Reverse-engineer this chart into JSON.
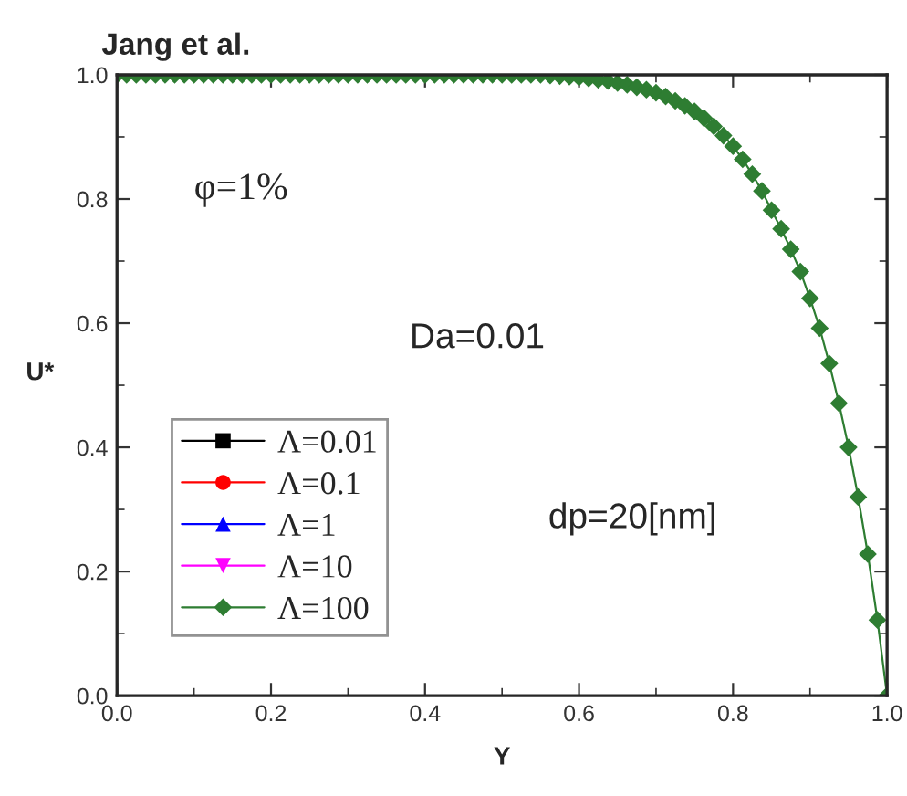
{
  "chart_data": {
    "type": "line",
    "title": "Jang et al.",
    "xlabel": "Y",
    "ylabel": "U*",
    "annotations": [
      "φ=1%",
      "Da=0.01",
      "dp=20[nm]"
    ],
    "x": [
      0.0,
      0.0125,
      0.025,
      0.0375,
      0.05,
      0.0625,
      0.075,
      0.0875,
      0.1,
      0.1125,
      0.125,
      0.1375,
      0.15,
      0.1625,
      0.175,
      0.1875,
      0.2,
      0.2125,
      0.225,
      0.2375,
      0.25,
      0.2625,
      0.275,
      0.2875,
      0.3,
      0.3125,
      0.325,
      0.3375,
      0.35,
      0.3625,
      0.375,
      0.3875,
      0.4,
      0.4125,
      0.425,
      0.4375,
      0.45,
      0.4625,
      0.475,
      0.4875,
      0.5,
      0.5125,
      0.525,
      0.5375,
      0.55,
      0.5625,
      0.575,
      0.5875,
      0.6,
      0.6125,
      0.625,
      0.6375,
      0.65,
      0.6625,
      0.675,
      0.6875,
      0.7,
      0.7125,
      0.725,
      0.7375,
      0.75,
      0.7625,
      0.775,
      0.7875,
      0.8,
      0.8125,
      0.825,
      0.8375,
      0.85,
      0.8625,
      0.875,
      0.8875,
      0.9,
      0.9125,
      0.925,
      0.9375,
      0.95,
      0.9625,
      0.975,
      0.9875,
      1.0
    ],
    "series": [
      {
        "name": "Λ=0.01",
        "color": "#000000",
        "marker": "square",
        "values": [
          null,
          null,
          null,
          null,
          null,
          null,
          null,
          null,
          null,
          null,
          null,
          null,
          null,
          null,
          null,
          null,
          null,
          null,
          null,
          null,
          null,
          null,
          null,
          null,
          null,
          null,
          null,
          null,
          null,
          null,
          null,
          null,
          null,
          null,
          null,
          null,
          null,
          null,
          null,
          null,
          null,
          null,
          null,
          null,
          null,
          null,
          null,
          null,
          null,
          null,
          null,
          null,
          null,
          null,
          null,
          null,
          null,
          null,
          null,
          null,
          null,
          null,
          null,
          null,
          null,
          null,
          null,
          null,
          null,
          null,
          null,
          null,
          null,
          null,
          null,
          null,
          null,
          null,
          null,
          null,
          null
        ]
      },
      {
        "name": "Λ=0.1",
        "color": "#ff0000",
        "marker": "circle",
        "values": [
          null,
          null,
          null,
          null,
          null,
          null,
          null,
          null,
          null,
          null,
          null,
          null,
          null,
          null,
          null,
          null,
          null,
          null,
          null,
          null,
          null,
          null,
          null,
          null,
          null,
          null,
          null,
          null,
          null,
          null,
          null,
          null,
          null,
          null,
          null,
          null,
          null,
          null,
          null,
          null,
          null,
          null,
          null,
          null,
          null,
          null,
          null,
          null,
          null,
          null,
          null,
          null,
          null,
          null,
          null,
          null,
          null,
          null,
          null,
          null,
          null,
          null,
          null,
          null,
          null,
          null,
          null,
          null,
          null,
          null,
          null,
          null,
          null,
          null,
          null,
          null,
          null,
          null,
          null,
          null,
          null
        ]
      },
      {
        "name": "Λ=1",
        "color": "#0000ff",
        "marker": "triangle",
        "values": [
          null,
          null,
          null,
          null,
          null,
          null,
          null,
          null,
          null,
          null,
          null,
          null,
          null,
          null,
          null,
          null,
          null,
          null,
          null,
          null,
          null,
          null,
          null,
          null,
          null,
          null,
          null,
          null,
          null,
          null,
          null,
          null,
          null,
          null,
          null,
          null,
          null,
          null,
          null,
          null,
          null,
          null,
          null,
          null,
          null,
          null,
          null,
          null,
          null,
          null,
          null,
          null,
          null,
          null,
          null,
          null,
          null,
          null,
          null,
          null,
          null,
          null,
          null,
          null,
          null,
          null,
          null,
          null,
          null,
          null,
          null,
          null,
          null,
          null,
          null,
          null,
          null,
          null,
          null,
          null,
          null
        ]
      },
      {
        "name": "Λ=10",
        "color": "#ff00ff",
        "marker": "triangle_down",
        "values": [
          null,
          null,
          null,
          null,
          null,
          null,
          null,
          null,
          null,
          null,
          null,
          null,
          null,
          null,
          null,
          null,
          null,
          null,
          null,
          null,
          null,
          null,
          null,
          null,
          null,
          null,
          null,
          null,
          null,
          null,
          null,
          null,
          null,
          null,
          null,
          null,
          null,
          null,
          null,
          null,
          null,
          null,
          null,
          null,
          null,
          null,
          null,
          null,
          null,
          null,
          null,
          null,
          null,
          null,
          null,
          null,
          null,
          null,
          null,
          null,
          null,
          null,
          null,
          null,
          null,
          null,
          null,
          null,
          null,
          null,
          null,
          null,
          null,
          null,
          null,
          null,
          null,
          null,
          null,
          null,
          null
        ]
      },
      {
        "name": "Λ=100",
        "color": "#2e7d32",
        "marker": "diamond",
        "values": [
          1.0,
          1.0,
          1.0,
          1.0,
          1.0,
          1.0,
          1.0,
          1.0,
          1.0,
          1.0,
          1.0,
          1.0,
          1.0,
          1.0,
          1.0,
          1.0,
          1.0,
          1.0,
          1.0,
          1.0,
          1.0,
          1.0,
          1.0,
          1.0,
          1.0,
          1.0,
          1.0,
          1.0,
          1.0,
          1.0,
          1.0,
          1.0,
          1.0,
          1.0,
          1.0,
          1.0,
          1.0,
          1.0,
          1.0,
          1.0,
          1.0,
          1.0,
          1.0,
          1.0,
          1.0,
          0.999,
          0.998,
          0.997,
          0.996,
          0.994,
          0.992,
          0.99,
          0.987,
          0.984,
          0.98,
          0.976,
          0.971,
          0.965,
          0.958,
          0.95,
          0.941,
          0.93,
          0.917,
          0.902,
          0.885,
          0.864,
          0.84,
          0.813,
          0.782,
          0.752,
          0.719,
          0.683,
          0.64,
          0.592,
          0.535,
          0.471,
          0.4,
          0.32,
          0.228,
          0.122,
          0.0
        ]
      }
    ],
    "xlim": [
      0.0,
      1.0
    ],
    "ylim": [
      0.0,
      1.0
    ],
    "xticks": [
      {
        "value": 0.0,
        "label": "0.0"
      },
      0.2,
      0.4,
      0.6,
      0.8,
      {
        "value": 1.0,
        "label": "1.0"
      }
    ],
    "yticks": [
      {
        "value": 0.0,
        "label": "0.0"
      },
      0.2,
      0.4,
      0.6,
      0.8,
      {
        "value": 1.0,
        "label": "1.0"
      }
    ],
    "legend": "bottom left",
    "grid": false,
    "line_style": "solid"
  }
}
